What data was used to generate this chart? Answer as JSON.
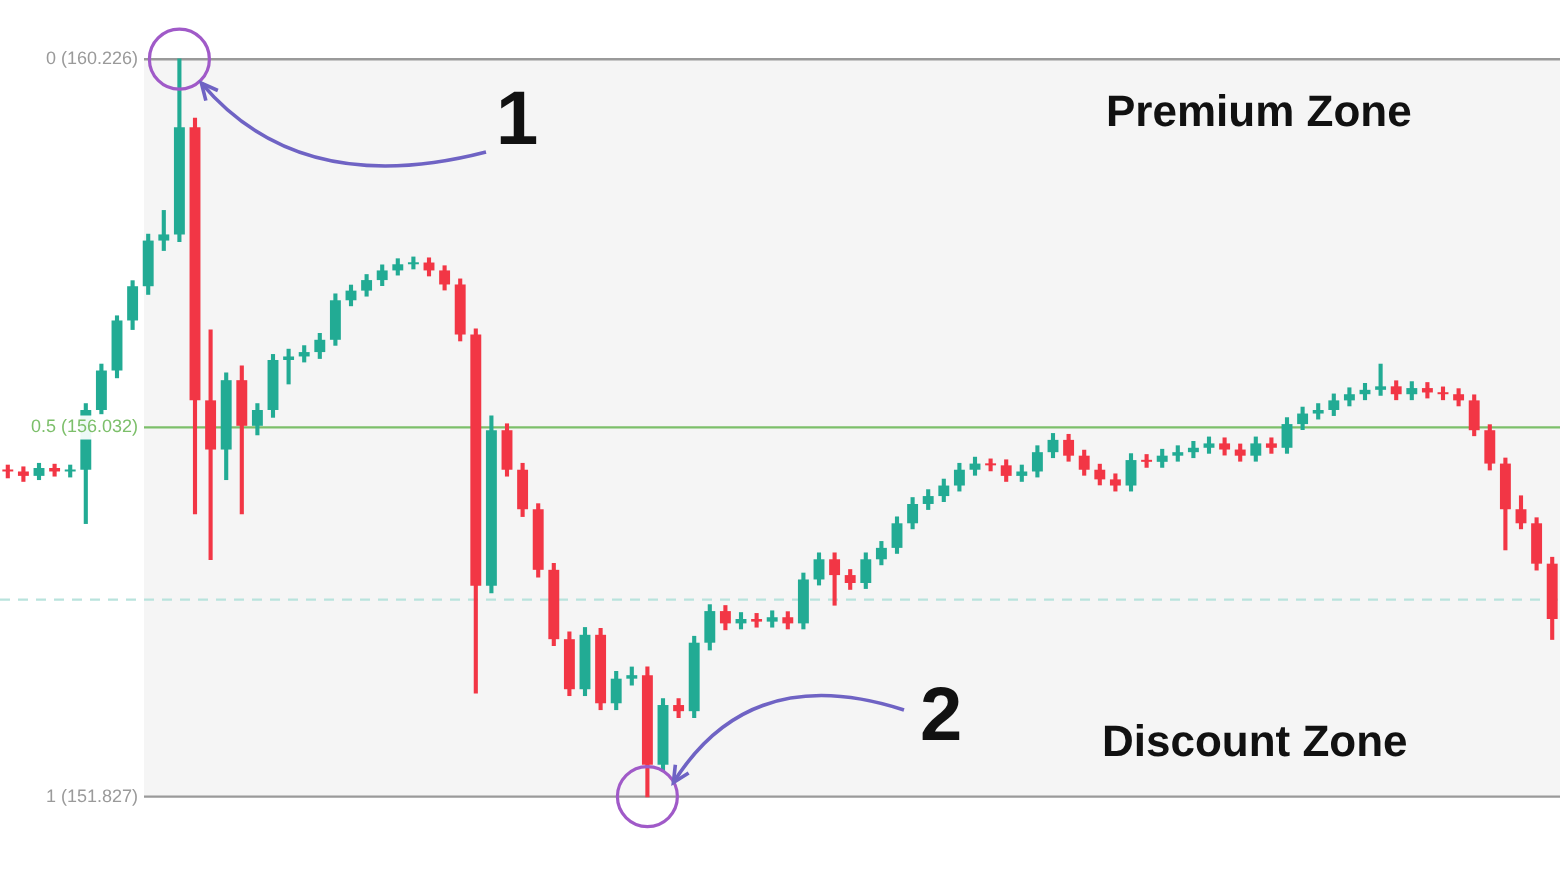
{
  "chart_data": {
    "type": "candlestick",
    "categories": [
      null,
      null,
      null,
      null,
      null,
      null,
      null,
      null,
      null,
      null,
      null,
      null,
      null,
      null,
      null,
      null,
      null,
      null,
      null,
      null,
      null,
      null,
      null,
      null,
      null,
      null,
      null,
      null,
      null,
      null,
      null,
      null,
      null,
      null,
      null,
      null,
      null,
      null,
      null,
      null,
      null,
      null,
      null,
      null,
      null,
      null,
      null,
      null,
      null,
      null,
      null,
      null,
      null,
      null,
      null,
      null,
      null,
      null,
      null,
      null,
      null,
      null,
      null,
      null,
      null,
      null,
      null,
      null,
      null,
      null,
      null,
      null,
      null,
      null,
      null,
      null,
      null,
      null,
      null,
      null,
      null,
      null,
      null,
      null,
      null,
      null,
      null,
      null,
      null,
      null,
      null,
      null,
      null,
      null,
      null,
      null,
      null,
      null,
      null,
      null
    ],
    "ohlc": [
      [
        155.55,
        155.6,
        155.46,
        155.53
      ],
      [
        155.53,
        155.58,
        155.42,
        155.48
      ],
      [
        155.48,
        155.62,
        155.44,
        155.57
      ],
      [
        155.57,
        155.61,
        155.48,
        155.53
      ],
      [
        155.53,
        155.6,
        155.47,
        155.55
      ],
      [
        155.55,
        156.3,
        154.94,
        156.23
      ],
      [
        156.23,
        156.75,
        156.19,
        156.68
      ],
      [
        156.68,
        157.3,
        156.6,
        157.25
      ],
      [
        157.25,
        157.7,
        157.15,
        157.64
      ],
      [
        157.64,
        158.23,
        157.55,
        158.16
      ],
      [
        158.16,
        158.5,
        158.05,
        158.23
      ],
      [
        158.23,
        160.226,
        158.15,
        159.45
      ],
      [
        159.45,
        159.55,
        155.05,
        156.34
      ],
      [
        156.34,
        157.14,
        154.53,
        155.78
      ],
      [
        155.78,
        156.65,
        155.44,
        156.57
      ],
      [
        156.57,
        156.73,
        155.05,
        156.05
      ],
      [
        156.05,
        156.3,
        155.95,
        156.23
      ],
      [
        156.23,
        156.86,
        156.15,
        156.8
      ],
      [
        156.8,
        156.92,
        156.53,
        156.84
      ],
      [
        156.84,
        156.96,
        156.78,
        156.89
      ],
      [
        156.89,
        157.1,
        156.82,
        157.03
      ],
      [
        157.03,
        157.55,
        156.97,
        157.48
      ],
      [
        157.48,
        157.65,
        157.42,
        157.59
      ],
      [
        157.59,
        157.77,
        157.53,
        157.71
      ],
      [
        157.71,
        157.88,
        157.65,
        157.82
      ],
      [
        157.82,
        157.95,
        157.77,
        157.89
      ],
      [
        157.89,
        157.97,
        157.84,
        157.91
      ],
      [
        157.91,
        157.96,
        157.76,
        157.82
      ],
      [
        157.82,
        157.87,
        157.6,
        157.66
      ],
      [
        157.66,
        157.72,
        157.02,
        157.09
      ],
      [
        157.09,
        157.15,
        153.01,
        154.23
      ],
      [
        154.23,
        156.16,
        154.15,
        156.0
      ],
      [
        156.0,
        156.07,
        155.48,
        155.55
      ],
      [
        155.55,
        155.62,
        155.02,
        155.1
      ],
      [
        155.1,
        155.16,
        154.33,
        154.41
      ],
      [
        154.41,
        154.48,
        153.55,
        153.62
      ],
      [
        153.62,
        153.7,
        152.98,
        153.05
      ],
      [
        153.05,
        153.75,
        152.98,
        153.67
      ],
      [
        153.67,
        153.74,
        152.82,
        152.89
      ],
      [
        152.89,
        153.25,
        152.82,
        153.17
      ],
      [
        153.17,
        153.3,
        153.1,
        153.21
      ],
      [
        153.21,
        153.3,
        151.827,
        152.19
      ],
      [
        152.19,
        152.94,
        152.12,
        152.87
      ],
      [
        152.87,
        152.94,
        152.73,
        152.8
      ],
      [
        152.8,
        153.65,
        152.73,
        153.58
      ],
      [
        153.58,
        154.01,
        153.5,
        153.94
      ],
      [
        153.94,
        154.0,
        153.73,
        153.8
      ],
      [
        153.8,
        153.92,
        153.74,
        153.85
      ],
      [
        153.85,
        153.91,
        153.76,
        153.82
      ],
      [
        153.82,
        153.94,
        153.76,
        153.87
      ],
      [
        153.87,
        153.93,
        153.74,
        153.8
      ],
      [
        153.8,
        154.37,
        153.74,
        154.3
      ],
      [
        154.3,
        154.6,
        154.24,
        154.53
      ],
      [
        154.53,
        154.6,
        154.01,
        154.35
      ],
      [
        154.35,
        154.41,
        154.19,
        154.26
      ],
      [
        154.26,
        154.6,
        154.2,
        154.53
      ],
      [
        154.53,
        154.73,
        154.47,
        154.66
      ],
      [
        154.66,
        155.01,
        154.6,
        154.94
      ],
      [
        154.94,
        155.23,
        154.88,
        155.16
      ],
      [
        155.16,
        155.32,
        155.1,
        155.25
      ],
      [
        155.25,
        155.44,
        155.19,
        155.37
      ],
      [
        155.37,
        155.62,
        155.31,
        155.55
      ],
      [
        155.55,
        155.69,
        155.49,
        155.62
      ],
      [
        155.62,
        155.67,
        155.54,
        155.6
      ],
      [
        155.6,
        155.66,
        155.42,
        155.48
      ],
      [
        155.48,
        155.6,
        155.42,
        155.53
      ],
      [
        155.53,
        155.82,
        155.47,
        155.75
      ],
      [
        155.75,
        155.96,
        155.69,
        155.89
      ],
      [
        155.89,
        155.95,
        155.65,
        155.71
      ],
      [
        155.71,
        155.77,
        155.49,
        155.55
      ],
      [
        155.55,
        155.61,
        155.38,
        155.44
      ],
      [
        155.44,
        155.5,
        155.31,
        155.37
      ],
      [
        155.37,
        155.73,
        155.31,
        155.66
      ],
      [
        155.66,
        155.72,
        155.58,
        155.64
      ],
      [
        155.64,
        155.78,
        155.58,
        155.71
      ],
      [
        155.71,
        155.82,
        155.65,
        155.75
      ],
      [
        155.75,
        155.87,
        155.69,
        155.8
      ],
      [
        155.8,
        155.92,
        155.74,
        155.85
      ],
      [
        155.85,
        155.91,
        155.72,
        155.78
      ],
      [
        155.78,
        155.84,
        155.65,
        155.71
      ],
      [
        155.71,
        155.92,
        155.65,
        155.85
      ],
      [
        155.85,
        155.91,
        155.74,
        155.8
      ],
      [
        155.8,
        156.14,
        155.74,
        156.07
      ],
      [
        156.07,
        156.26,
        156.01,
        156.19
      ],
      [
        156.19,
        156.3,
        156.13,
        156.23
      ],
      [
        156.23,
        156.41,
        156.17,
        156.34
      ],
      [
        156.34,
        156.48,
        156.28,
        156.41
      ],
      [
        156.41,
        156.53,
        156.35,
        156.46
      ],
      [
        156.46,
        156.75,
        156.4,
        156.5
      ],
      [
        156.5,
        156.56,
        156.35,
        156.41
      ],
      [
        156.41,
        156.55,
        156.35,
        156.48
      ],
      [
        156.48,
        156.54,
        156.37,
        156.43
      ],
      [
        156.43,
        156.49,
        156.35,
        156.41
      ],
      [
        156.41,
        156.47,
        156.28,
        156.34
      ],
      [
        156.34,
        156.4,
        155.94,
        156.0
      ],
      [
        156.0,
        156.06,
        155.55,
        155.62
      ],
      [
        155.62,
        155.68,
        154.64,
        155.1
      ],
      [
        155.1,
        155.25,
        154.88,
        154.94
      ],
      [
        154.94,
        155.0,
        154.41,
        154.48
      ],
      [
        154.48,
        154.55,
        153.62,
        153.85
      ]
    ],
    "ylim": [
      150.9,
      160.9
    ],
    "tick_labels": false,
    "ref_lines": [
      {
        "axis": "y",
        "value": 160.226,
        "label": "0 (160.226)",
        "color": "#9a9a9a"
      },
      {
        "axis": "y",
        "value": 156.032,
        "label": "0.5 (156.032)",
        "color": "#7cbf6a"
      },
      {
        "axis": "y",
        "value": 154.07,
        "color": "#b9e3dd",
        "line_style": "dashed"
      },
      {
        "axis": "y",
        "value": 151.827,
        "label": "1 (151.827)",
        "color": "#9a9a9a"
      }
    ],
    "bands": [
      {
        "axis": "y",
        "from": 151.827,
        "to": 160.226,
        "color": "#f5f5f5"
      }
    ],
    "annotations": [
      "1",
      "2",
      "Premium Zone",
      "Discount Zone"
    ]
  }
}
